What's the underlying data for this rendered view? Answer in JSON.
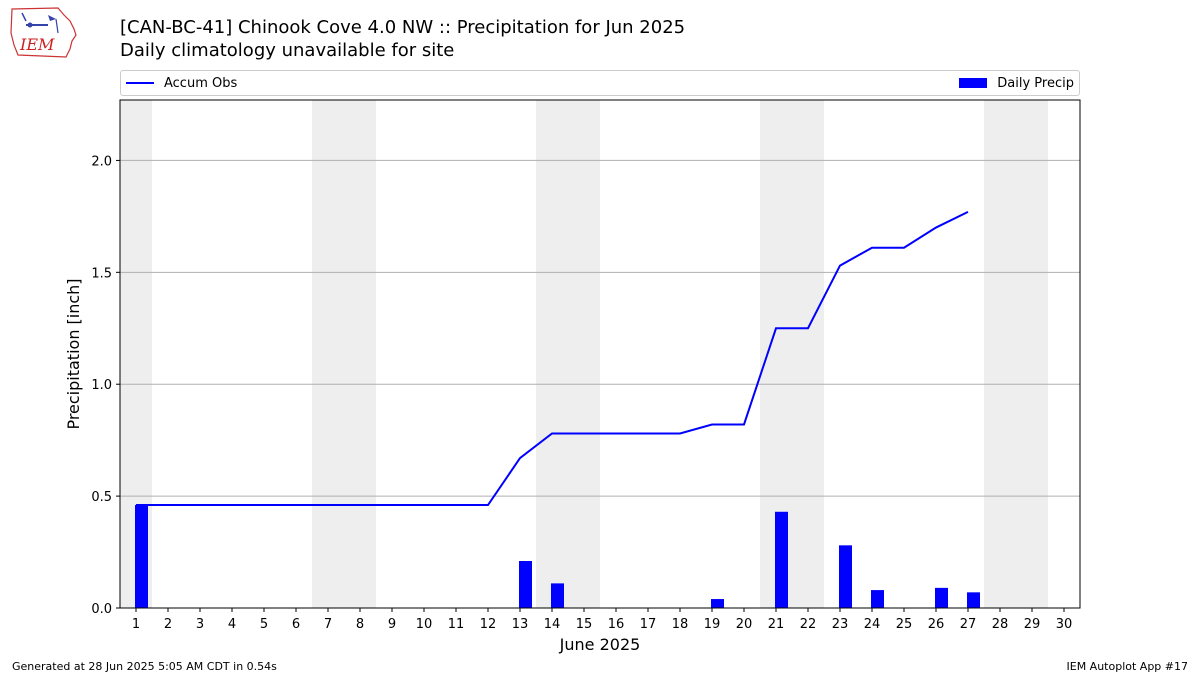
{
  "logo": {
    "text": "IEM",
    "icon": "iem-logo-icon"
  },
  "title": {
    "line1": "[CAN-BC-41] Chinook Cove 4.0 NW :: Precipitation for Jun 2025",
    "line2": "Daily climatology unavailable for site"
  },
  "legend": {
    "line_label": "Accum Obs",
    "bar_label": "Daily Precip"
  },
  "footer": {
    "left": "Generated at 28 Jun 2025 5:05 AM CDT in 0.54s",
    "right": "IEM Autoplot App #17"
  },
  "colors": {
    "series": "#0000ff",
    "weekend_shade": "#eeeeee",
    "grid": "#b0b0b0"
  },
  "chart_data": {
    "type": "bar",
    "xlabel": "June 2025",
    "ylabel": "Precipitation [inch]",
    "xlim": [
      0.5,
      30.5
    ],
    "ylim": [
      0,
      2.27
    ],
    "yticks": [
      "0.0",
      "0.5",
      "1.0",
      "1.5",
      "2.0"
    ],
    "xticks": [
      "1",
      "2",
      "3",
      "4",
      "5",
      "6",
      "7",
      "8",
      "9",
      "10",
      "11",
      "12",
      "13",
      "14",
      "15",
      "16",
      "17",
      "18",
      "19",
      "20",
      "21",
      "22",
      "23",
      "24",
      "25",
      "26",
      "27",
      "28",
      "29",
      "30"
    ],
    "grid": "horizontal",
    "legend_position": "top",
    "weekend_shading": [
      [
        0.5,
        1.5
      ],
      [
        6.5,
        8.5
      ],
      [
        13.5,
        15.5
      ],
      [
        20.5,
        22.5
      ],
      [
        27.5,
        29.5
      ]
    ],
    "series": [
      {
        "name": "Daily Precip",
        "type": "bar",
        "x": [
          1,
          13,
          14,
          19,
          21,
          23,
          24,
          26,
          27
        ],
        "values": [
          0.46,
          0.21,
          0.11,
          0.04,
          0.43,
          0.28,
          0.08,
          0.09,
          0.07
        ]
      },
      {
        "name": "Accum Obs",
        "type": "line",
        "x": [
          1,
          2,
          3,
          4,
          5,
          6,
          7,
          8,
          9,
          10,
          11,
          12,
          13,
          14,
          15,
          16,
          17,
          18,
          19,
          20,
          21,
          22,
          23,
          24,
          25,
          26,
          27
        ],
        "values": [
          0.46,
          0.46,
          0.46,
          0.46,
          0.46,
          0.46,
          0.46,
          0.46,
          0.46,
          0.46,
          0.46,
          0.46,
          0.67,
          0.78,
          0.78,
          0.78,
          0.78,
          0.78,
          0.82,
          0.82,
          1.25,
          1.25,
          1.53,
          1.61,
          1.61,
          1.7,
          1.77
        ]
      }
    ]
  }
}
